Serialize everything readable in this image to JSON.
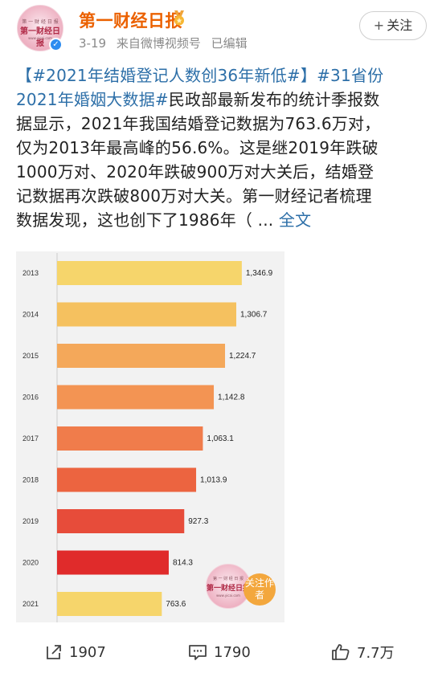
{
  "account": {
    "name": "第一财经日报",
    "avatar_small_text": "第 一 财 经 日 报",
    "avatar_big_text": "第一财经日报",
    "avatar_tiny_text": "www.yicai.com",
    "date": "3-19",
    "source": "来自微博视频号",
    "edited": "已编辑",
    "follow_label": "关注",
    "verified_icon": "check-icon",
    "brand_color": "#eb6100"
  },
  "post": {
    "lines": [
      [
        {
          "t": "【#2021年结婚登记人数创36年新低#】",
          "k": "tag"
        },
        {
          "t": "#31省份",
          "k": "tag"
        }
      ],
      [
        {
          "t": "2021年婚姻大数据#",
          "k": "tag"
        },
        {
          "t": "民政部最新发布的统计季报数",
          "k": "text"
        }
      ],
      [
        {
          "t": "据显示，2021年我国结婚登记数据为763.6万对，",
          "k": "text"
        }
      ],
      [
        {
          "t": "仅为2013年最高峰的56.6%。这是继2019年跌破",
          "k": "text"
        }
      ],
      [
        {
          "t": "1000万对、2020年跌破900万对大关后，结婚登",
          "k": "text"
        }
      ],
      [
        {
          "t": "记数据再次跌破800万对大关。第一财经记者梳理",
          "k": "text"
        }
      ],
      [
        {
          "t": "数据发现，这也创下了1986年（ ...",
          "k": "text"
        },
        {
          "t": " 全文",
          "k": "more"
        }
      ]
    ]
  },
  "chart_data": {
    "type": "bar",
    "orientation": "horizontal",
    "categories": [
      "2013",
      "2014",
      "2015",
      "2016",
      "2017",
      "2018",
      "2019",
      "2020",
      "2021"
    ],
    "values": [
      1346.9,
      1306.7,
      1224.7,
      1142.8,
      1063.1,
      1013.9,
      927.3,
      814.3,
      763.6
    ],
    "labels": [
      "1,346.9",
      "1,306.7",
      "1,224.7",
      "1,142.8",
      "1,063.1",
      "1,013.9",
      "927.3",
      "814.3",
      "763.6"
    ],
    "colors": [
      "#f6d56b",
      "#f5c15f",
      "#f4a85a",
      "#f39453",
      "#f07c4b",
      "#ec6440",
      "#e74c3a",
      "#e02b2b",
      "#f6d56b"
    ],
    "xlim": [
      0,
      1500
    ],
    "title": "",
    "xlabel": "",
    "ylabel": "",
    "grid": false,
    "watermark_small_text": "第 一 财 经 日 报",
    "watermark_big_text": "第一财经日报",
    "watermark_tiny_text": "www.yicai.com",
    "watermark_follow": "关注作者"
  },
  "actions": {
    "share_count": "1907",
    "comment_count": "1790",
    "like_count": "7.7万",
    "share_icon": "share-icon",
    "comment_icon": "comment-icon",
    "like_icon": "thumbs-up-icon"
  }
}
